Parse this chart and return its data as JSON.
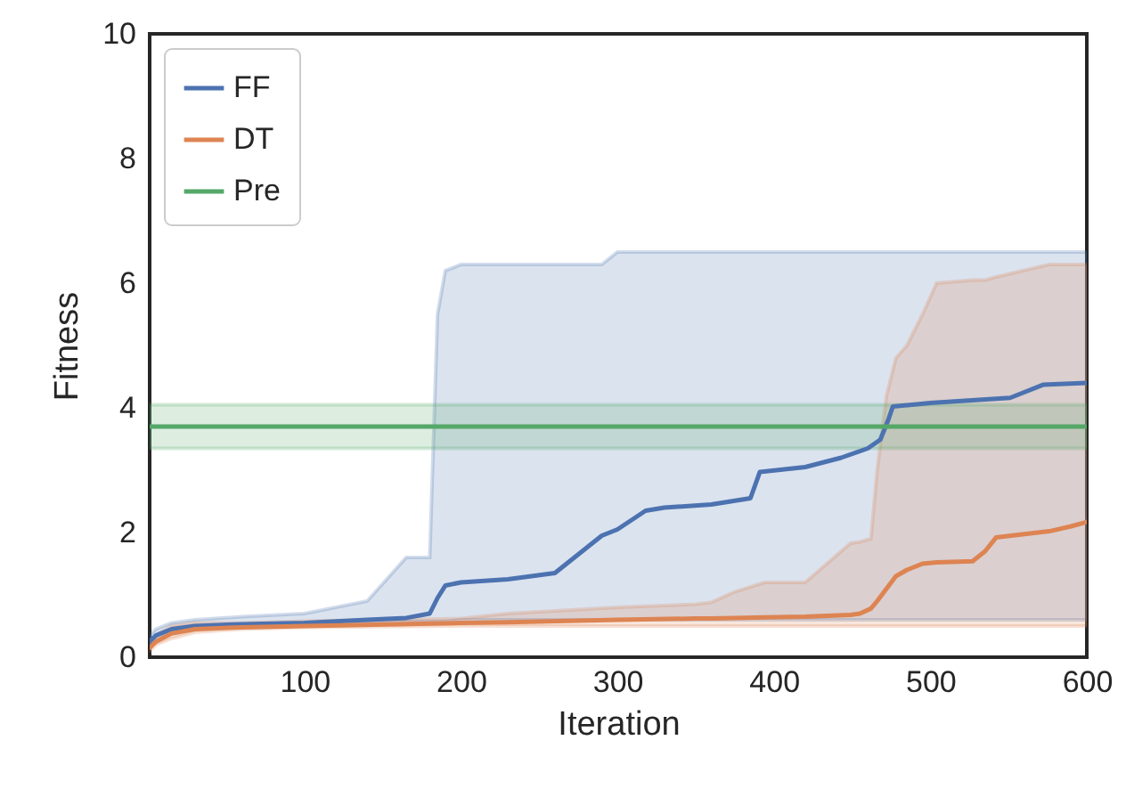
{
  "chart_data": {
    "type": "line",
    "xlabel": "Iteration",
    "ylabel": "Fitness",
    "xlim": [
      1,
      600
    ],
    "ylim": [
      0,
      10
    ],
    "xticks": [
      100,
      200,
      300,
      400,
      500,
      600
    ],
    "yticks": [
      0,
      2,
      4,
      6,
      8,
      10
    ],
    "legend": "top left",
    "marker": "none",
    "line_style": "solid",
    "series": [
      {
        "name": "FF",
        "color": "#4c72b0",
        "x": [
          1,
          5,
          15,
          30,
          60,
          100,
          140,
          165,
          180,
          185,
          190,
          200,
          230,
          260,
          270,
          280,
          290,
          300,
          318,
          330,
          360,
          385,
          391,
          420,
          443,
          460,
          468,
          473,
          476,
          500,
          551,
          560,
          572,
          600
        ],
        "values": [
          0.25,
          0.35,
          0.45,
          0.5,
          0.53,
          0.55,
          0.6,
          0.63,
          0.7,
          0.95,
          1.15,
          1.2,
          1.25,
          1.35,
          1.55,
          1.75,
          1.95,
          2.05,
          2.35,
          2.4,
          2.45,
          2.55,
          2.97,
          3.05,
          3.2,
          3.35,
          3.49,
          3.8,
          4.02,
          4.08,
          4.16,
          4.25,
          4.37,
          4.4
        ],
        "lower": [
          0.2,
          0.3,
          0.4,
          0.45,
          0.5,
          0.52,
          0.55,
          0.57,
          0.57,
          0.57,
          0.57,
          0.6,
          0.6,
          0.6,
          0.6,
          0.6,
          0.6,
          0.6,
          0.6,
          0.6,
          0.6,
          0.6,
          0.6,
          0.6,
          0.6,
          0.6,
          0.6,
          0.6,
          0.6,
          0.6,
          0.6,
          0.6,
          0.6,
          0.6
        ],
        "upper": [
          0.35,
          0.45,
          0.55,
          0.6,
          0.65,
          0.7,
          0.9,
          1.6,
          1.6,
          5.5,
          6.2,
          6.3,
          6.3,
          6.3,
          6.3,
          6.3,
          6.3,
          6.5,
          6.5,
          6.5,
          6.5,
          6.5,
          6.5,
          6.5,
          6.5,
          6.5,
          6.5,
          6.5,
          6.5,
          6.5,
          6.5,
          6.5,
          6.5,
          6.5
        ]
      },
      {
        "name": "DT",
        "color": "#dd8452",
        "x": [
          1,
          5,
          15,
          30,
          60,
          100,
          200,
          230,
          300,
          350,
          360,
          375,
          394,
          420,
          449,
          455,
          462,
          466,
          472,
          478,
          485,
          495,
          504,
          527,
          535,
          542,
          576,
          590,
          600
        ],
        "values": [
          0.15,
          0.25,
          0.38,
          0.45,
          0.48,
          0.5,
          0.55,
          0.56,
          0.6,
          0.62,
          0.62,
          0.63,
          0.64,
          0.65,
          0.68,
          0.7,
          0.78,
          0.9,
          1.1,
          1.3,
          1.4,
          1.5,
          1.52,
          1.54,
          1.7,
          1.92,
          2.02,
          2.1,
          2.17
        ],
        "lower": [
          0.1,
          0.2,
          0.3,
          0.4,
          0.45,
          0.48,
          0.5,
          0.5,
          0.5,
          0.5,
          0.5,
          0.5,
          0.5,
          0.5,
          0.5,
          0.5,
          0.5,
          0.5,
          0.5,
          0.5,
          0.5,
          0.5,
          0.5,
          0.5,
          0.5,
          0.5,
          0.5,
          0.5,
          0.5
        ],
        "upper": [
          0.2,
          0.35,
          0.5,
          0.55,
          0.55,
          0.58,
          0.62,
          0.7,
          0.8,
          0.85,
          0.88,
          1.05,
          1.2,
          1.2,
          1.83,
          1.85,
          1.9,
          3.0,
          4.2,
          4.8,
          5.0,
          5.5,
          6.0,
          6.05,
          6.05,
          6.1,
          6.3,
          6.3,
          6.3
        ]
      },
      {
        "name": "Pre",
        "color": "#55a868",
        "x": [
          1,
          600
        ],
        "values": [
          3.7,
          3.7
        ],
        "lower": [
          3.35,
          3.35
        ],
        "upper": [
          4.05,
          4.05
        ]
      }
    ]
  }
}
